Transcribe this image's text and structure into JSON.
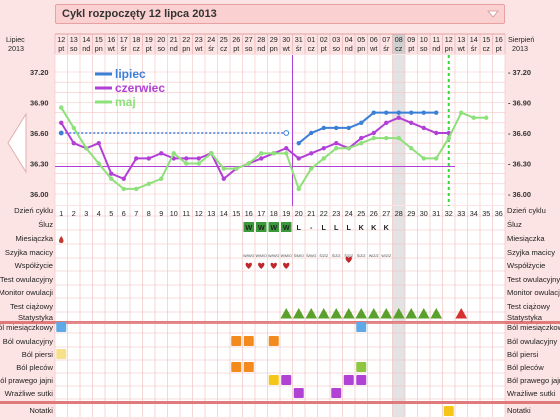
{
  "title": "Cykl rozpoczęty 12 lipca 2013",
  "header": {
    "left_month": "Lipiec",
    "left_year": "2013",
    "right_month": "Sierpień",
    "right_year": "2013"
  },
  "dates": [
    {
      "d": "12",
      "w": "pt"
    },
    {
      "d": "13",
      "w": "so"
    },
    {
      "d": "14",
      "w": "nd"
    },
    {
      "d": "15",
      "w": "pn"
    },
    {
      "d": "16",
      "w": "wt"
    },
    {
      "d": "17",
      "w": "śr"
    },
    {
      "d": "18",
      "w": "cz"
    },
    {
      "d": "19",
      "w": "pt"
    },
    {
      "d": "20",
      "w": "so"
    },
    {
      "d": "21",
      "w": "nd"
    },
    {
      "d": "22",
      "w": "pn"
    },
    {
      "d": "23",
      "w": "wt"
    },
    {
      "d": "24",
      "w": "śr"
    },
    {
      "d": "25",
      "w": "cz"
    },
    {
      "d": "26",
      "w": "pt"
    },
    {
      "d": "27",
      "w": "so"
    },
    {
      "d": "28",
      "w": "nd"
    },
    {
      "d": "29",
      "w": "pn"
    },
    {
      "d": "30",
      "w": "wt"
    },
    {
      "d": "31",
      "w": "śr"
    },
    {
      "d": "01",
      "w": "cz"
    },
    {
      "d": "02",
      "w": "pt"
    },
    {
      "d": "03",
      "w": "so"
    },
    {
      "d": "04",
      "w": "nd"
    },
    {
      "d": "05",
      "w": "pn"
    },
    {
      "d": "06",
      "w": "wt"
    },
    {
      "d": "07",
      "w": "śr"
    },
    {
      "d": "08",
      "w": "cz"
    },
    {
      "d": "09",
      "w": "pt"
    },
    {
      "d": "10",
      "w": "so"
    },
    {
      "d": "11",
      "w": "nd"
    },
    {
      "d": "12",
      "w": "pn"
    },
    {
      "d": "13",
      "w": "wt"
    },
    {
      "d": "14",
      "w": "śr"
    },
    {
      "d": "15",
      "w": "cz"
    },
    {
      "d": "16",
      "w": "pt"
    }
  ],
  "chart_data": {
    "type": "line",
    "y_ticks": [
      "37.20",
      "36.90",
      "36.60",
      "36.30",
      "36.00"
    ],
    "series": [
      {
        "name": "lipiec",
        "color": "#3b7fd6",
        "values": [
          36.6,
          36.6,
          36.6,
          36.6,
          36.6,
          36.6,
          36.6,
          36.6,
          36.6,
          36.6,
          36.6,
          36.6,
          36.6,
          36.6,
          36.6,
          36.6,
          36.6,
          36.6,
          36.6,
          36.5,
          36.6,
          36.65,
          36.65,
          36.65,
          36.7,
          36.8,
          36.8,
          36.8,
          36.8,
          36.8,
          36.8,
          null,
          null,
          null,
          null,
          null
        ]
      },
      {
        "name": "czerwiec",
        "color": "#b23fd6",
        "values": [
          36.7,
          36.5,
          36.45,
          36.5,
          36.2,
          36.15,
          36.35,
          36.35,
          36.4,
          36.35,
          36.35,
          36.35,
          36.4,
          36.15,
          36.25,
          36.3,
          36.35,
          36.4,
          36.45,
          36.35,
          36.4,
          36.45,
          36.5,
          36.45,
          36.55,
          36.6,
          36.7,
          36.75,
          36.7,
          36.65,
          36.6,
          36.6,
          null,
          null,
          null,
          null
        ]
      },
      {
        "name": "maj",
        "color": "#8ee07a",
        "values": [
          36.85,
          36.65,
          36.45,
          36.3,
          36.15,
          36.05,
          36.05,
          36.1,
          36.15,
          36.4,
          36.3,
          36.3,
          36.4,
          36.25,
          36.25,
          36.3,
          36.4,
          36.4,
          36.4,
          36.05,
          36.25,
          36.35,
          36.45,
          36.45,
          36.5,
          36.55,
          36.55,
          36.55,
          36.45,
          36.35,
          36.35,
          36.55,
          36.8,
          36.75,
          36.75,
          null
        ]
      }
    ],
    "coverline": 36.27,
    "ovulation_day": 19,
    "highlight_day": 28,
    "green_dotted_day": 31
  },
  "labels": {
    "cycle_day": "Dzień cyklu",
    "cervical": "Śluz",
    "menstruation": "Miesiączka",
    "cervix": "Szyjka macicy",
    "intercourse": "Współżycie",
    "ovulation_test": "Test owulacyjny",
    "ovulation_monitor": "Monitor owulacji",
    "pregnancy_test": "Test ciążowy",
    "statistics": "Statystyka",
    "menstrual_pain": "Ból miesiączkowy",
    "ovulation_pain": "Ból owulacyjny",
    "breast_pain": "Ból piersi",
    "back_pain": "Ból pleców",
    "right_ovary": "Ból prawego jajni",
    "sensitive_nipples": "Wrażliwe sutki",
    "notes": "Notatki"
  },
  "mucus_marks": [
    {
      "day": 16,
      "t": "W"
    },
    {
      "day": 17,
      "t": "W"
    },
    {
      "day": 18,
      "t": "W"
    },
    {
      "day": 19,
      "t": "W"
    },
    {
      "day": 20,
      "t": "L"
    },
    {
      "day": 21,
      "t": "-"
    },
    {
      "day": 22,
      "t": "L"
    },
    {
      "day": 23,
      "t": "L"
    },
    {
      "day": 24,
      "t": "L"
    },
    {
      "day": 25,
      "t": "K"
    },
    {
      "day": 26,
      "t": "K"
    },
    {
      "day": 27,
      "t": "K"
    }
  ],
  "cervix_marks": [
    {
      "day": 16,
      "t": "W/M/O"
    },
    {
      "day": 17,
      "t": "W/M/O"
    },
    {
      "day": 18,
      "t": "W/M/O"
    },
    {
      "day": 19,
      "t": "W/M/O"
    },
    {
      "day": 20,
      "t": "Ś/M/O"
    },
    {
      "day": 21,
      "t": "Ś/M/O"
    },
    {
      "day": 22,
      "t": "Ś/Z/Z"
    },
    {
      "day": 23,
      "t": "Ś/Z/Z"
    },
    {
      "day": 24,
      "t": "Ś/Z/Z"
    },
    {
      "day": 25,
      "t": "Ś/Z/Z"
    },
    {
      "day": 26,
      "t": "W/Z/Z"
    },
    {
      "day": 27,
      "t": "W/Z/Z"
    }
  ],
  "menstruation_days": [
    1
  ],
  "intercourse_days": [
    16,
    17,
    18,
    19,
    24
  ],
  "statistics_days": [
    19,
    20,
    21,
    22,
    23,
    24,
    25,
    26,
    27,
    28,
    29,
    30,
    31,
    33
  ],
  "symptoms": {
    "menstrual_pain": [
      1,
      25
    ],
    "ovulation_pain": [
      15,
      16,
      18
    ],
    "breast_pain": [
      1
    ],
    "back_pain": [
      15,
      16,
      25
    ],
    "right_ovary": [
      18,
      19,
      24,
      25
    ],
    "sensitive_nipples": [
      20,
      23
    ]
  },
  "notes_days": [
    32
  ]
}
